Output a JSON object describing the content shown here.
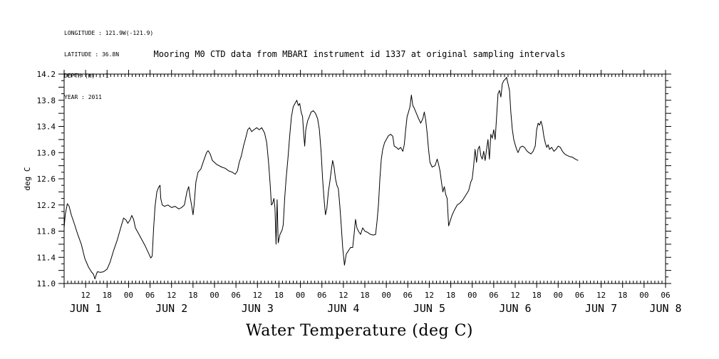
{
  "meta": {
    "longitude": "LONGITUDE : 121.9W(-121.9)",
    "latitude": "LATITUDE : 36.8N",
    "depth": "DEPTH (m) : 1",
    "year": "YEAR : 2011"
  },
  "chart_data": {
    "type": "line",
    "title": "Mooring M0 CTD data from MBARI instrument id 1337 at original sampling intervals",
    "xlabel": "Water Temperature (deg C)",
    "ylabel": "deg C",
    "ylim": [
      11.0,
      14.2
    ],
    "yticks": [
      "11.0",
      "11.4",
      "11.8",
      "12.2",
      "12.6",
      "13.0",
      "13.4",
      "13.8",
      "14.2"
    ],
    "xlim_hours_from_jun1_00": [
      6,
      174
    ],
    "hour_ticks": [
      {
        "h": 12,
        "label": "12"
      },
      {
        "h": 18,
        "label": "18"
      },
      {
        "h": 24,
        "label": "00"
      },
      {
        "h": 30,
        "label": "06"
      },
      {
        "h": 36,
        "label": "12"
      },
      {
        "h": 42,
        "label": "18"
      },
      {
        "h": 48,
        "label": "00"
      },
      {
        "h": 54,
        "label": "06"
      },
      {
        "h": 60,
        "label": "12"
      },
      {
        "h": 66,
        "label": "18"
      },
      {
        "h": 72,
        "label": "00"
      },
      {
        "h": 78,
        "label": "06"
      },
      {
        "h": 84,
        "label": "12"
      },
      {
        "h": 90,
        "label": "18"
      },
      {
        "h": 96,
        "label": "00"
      },
      {
        "h": 102,
        "label": "06"
      },
      {
        "h": 108,
        "label": "12"
      },
      {
        "h": 114,
        "label": "18"
      },
      {
        "h": 120,
        "label": "00"
      },
      {
        "h": 126,
        "label": "06"
      },
      {
        "h": 132,
        "label": "12"
      },
      {
        "h": 138,
        "label": "18"
      },
      {
        "h": 144,
        "label": "00"
      },
      {
        "h": 150,
        "label": "06"
      },
      {
        "h": 156,
        "label": "12"
      },
      {
        "h": 162,
        "label": "18"
      },
      {
        "h": 168,
        "label": "00"
      },
      {
        "h": 174,
        "label": "06"
      }
    ],
    "day_labels": [
      {
        "h": 12,
        "label": "JUN  1"
      },
      {
        "h": 36,
        "label": "JUN  2"
      },
      {
        "h": 60,
        "label": "JUN  3"
      },
      {
        "h": 84,
        "label": "JUN  4"
      },
      {
        "h": 108,
        "label": "JUN  5"
      },
      {
        "h": 132,
        "label": "JUN  6"
      },
      {
        "h": 156,
        "label": "JUN  7"
      },
      {
        "h": 174,
        "label": "JUN  8"
      }
    ],
    "series": [
      {
        "color": "#000000",
        "points": [
          [
            6.0,
            11.85
          ],
          [
            6.3,
            12.05
          ],
          [
            6.9,
            12.22
          ],
          [
            7.4,
            12.18
          ],
          [
            8.0,
            12.05
          ],
          [
            8.8,
            11.92
          ],
          [
            9.8,
            11.75
          ],
          [
            10.8,
            11.6
          ],
          [
            11.8,
            11.38
          ],
          [
            12.8,
            11.25
          ],
          [
            13.6,
            11.18
          ],
          [
            14.2,
            11.14
          ],
          [
            14.6,
            11.07
          ],
          [
            15.0,
            11.14
          ],
          [
            15.3,
            11.18
          ],
          [
            16.2,
            11.17
          ],
          [
            17.0,
            11.18
          ],
          [
            18.0,
            11.22
          ],
          [
            18.8,
            11.32
          ],
          [
            19.8,
            11.5
          ],
          [
            20.8,
            11.66
          ],
          [
            21.8,
            11.85
          ],
          [
            22.6,
            12.0
          ],
          [
            23.3,
            11.97
          ],
          [
            23.8,
            11.92
          ],
          [
            24.4,
            11.97
          ],
          [
            24.9,
            12.04
          ],
          [
            25.4,
            11.98
          ],
          [
            25.9,
            11.85
          ],
          [
            26.6,
            11.78
          ],
          [
            27.6,
            11.68
          ],
          [
            28.6,
            11.58
          ],
          [
            29.6,
            11.46
          ],
          [
            30.2,
            11.39
          ],
          [
            30.6,
            11.42
          ],
          [
            31.0,
            11.85
          ],
          [
            31.4,
            12.18
          ],
          [
            31.9,
            12.4
          ],
          [
            32.4,
            12.47
          ],
          [
            32.8,
            12.5
          ],
          [
            33.0,
            12.3
          ],
          [
            33.4,
            12.2
          ],
          [
            34.0,
            12.18
          ],
          [
            35.0,
            12.2
          ],
          [
            36.0,
            12.16
          ],
          [
            37.0,
            12.18
          ],
          [
            38.0,
            12.14
          ],
          [
            38.8,
            12.16
          ],
          [
            39.6,
            12.2
          ],
          [
            40.3,
            12.4
          ],
          [
            40.8,
            12.48
          ],
          [
            41.2,
            12.32
          ],
          [
            41.6,
            12.2
          ],
          [
            42.0,
            12.05
          ],
          [
            42.3,
            12.2
          ],
          [
            42.8,
            12.55
          ],
          [
            43.4,
            12.7
          ],
          [
            44.2,
            12.75
          ],
          [
            45.0,
            12.88
          ],
          [
            45.8,
            13.0
          ],
          [
            46.2,
            13.03
          ],
          [
            46.8,
            12.98
          ],
          [
            47.4,
            12.88
          ],
          [
            48.6,
            12.82
          ],
          [
            50.0,
            12.78
          ],
          [
            51.0,
            12.76
          ],
          [
            52.0,
            12.72
          ],
          [
            53.0,
            12.7
          ],
          [
            53.8,
            12.67
          ],
          [
            54.4,
            12.72
          ],
          [
            54.9,
            12.85
          ],
          [
            55.5,
            12.95
          ],
          [
            56.1,
            13.1
          ],
          [
            56.7,
            13.22
          ],
          [
            57.3,
            13.35
          ],
          [
            57.8,
            13.38
          ],
          [
            58.4,
            13.32
          ],
          [
            59.0,
            13.35
          ],
          [
            59.8,
            13.38
          ],
          [
            60.5,
            13.35
          ],
          [
            61.2,
            13.38
          ],
          [
            62.0,
            13.3
          ],
          [
            62.6,
            13.15
          ],
          [
            63.1,
            12.85
          ],
          [
            63.5,
            12.55
          ],
          [
            63.9,
            12.2
          ],
          [
            64.2,
            12.22
          ],
          [
            64.6,
            12.3
          ],
          [
            64.9,
            12.15
          ],
          [
            65.2,
            11.6
          ],
          [
            65.5,
            12.28
          ],
          [
            65.8,
            11.62
          ],
          [
            66.3,
            11.75
          ],
          [
            66.9,
            11.82
          ],
          [
            67.2,
            11.9
          ],
          [
            67.6,
            12.3
          ],
          [
            68.0,
            12.6
          ],
          [
            68.5,
            12.9
          ],
          [
            69.0,
            13.25
          ],
          [
            69.5,
            13.55
          ],
          [
            70.0,
            13.7
          ],
          [
            70.5,
            13.75
          ],
          [
            71.0,
            13.8
          ],
          [
            71.4,
            13.72
          ],
          [
            71.8,
            13.75
          ],
          [
            72.2,
            13.62
          ],
          [
            72.6,
            13.55
          ],
          [
            72.9,
            13.3
          ],
          [
            73.2,
            13.1
          ],
          [
            73.5,
            13.35
          ],
          [
            74.0,
            13.48
          ],
          [
            74.5,
            13.55
          ],
          [
            75.0,
            13.62
          ],
          [
            75.6,
            13.64
          ],
          [
            76.2,
            13.6
          ],
          [
            76.8,
            13.52
          ],
          [
            77.3,
            13.35
          ],
          [
            77.8,
            13.0
          ],
          [
            78.2,
            12.6
          ],
          [
            78.6,
            12.3
          ],
          [
            79.0,
            12.05
          ],
          [
            79.4,
            12.15
          ],
          [
            79.8,
            12.4
          ],
          [
            80.2,
            12.55
          ],
          [
            80.6,
            12.72
          ],
          [
            81.0,
            12.88
          ],
          [
            81.4,
            12.78
          ],
          [
            81.8,
            12.6
          ],
          [
            82.2,
            12.5
          ],
          [
            82.6,
            12.45
          ],
          [
            83.0,
            12.2
          ],
          [
            83.4,
            11.9
          ],
          [
            83.8,
            11.55
          ],
          [
            84.3,
            11.28
          ],
          [
            84.8,
            11.45
          ],
          [
            85.4,
            11.5
          ],
          [
            86.0,
            11.55
          ],
          [
            86.6,
            11.55
          ],
          [
            87.0,
            11.75
          ],
          [
            87.4,
            11.98
          ],
          [
            87.8,
            11.85
          ],
          [
            88.2,
            11.8
          ],
          [
            88.8,
            11.75
          ],
          [
            89.4,
            11.85
          ],
          [
            90.0,
            11.8
          ],
          [
            90.8,
            11.78
          ],
          [
            91.6,
            11.75
          ],
          [
            92.4,
            11.74
          ],
          [
            93.0,
            11.75
          ],
          [
            93.4,
            11.95
          ],
          [
            93.8,
            12.2
          ],
          [
            94.2,
            12.6
          ],
          [
            94.6,
            12.9
          ],
          [
            95.0,
            13.05
          ],
          [
            95.5,
            13.15
          ],
          [
            96.0,
            13.2
          ],
          [
            96.6,
            13.26
          ],
          [
            97.2,
            13.28
          ],
          [
            97.8,
            13.25
          ],
          [
            98.2,
            13.1
          ],
          [
            98.8,
            13.08
          ],
          [
            99.4,
            13.05
          ],
          [
            100.0,
            13.08
          ],
          [
            100.6,
            13.02
          ],
          [
            101.0,
            13.12
          ],
          [
            101.4,
            13.35
          ],
          [
            101.8,
            13.55
          ],
          [
            102.2,
            13.62
          ],
          [
            102.6,
            13.7
          ],
          [
            103.0,
            13.88
          ],
          [
            103.4,
            13.72
          ],
          [
            103.8,
            13.68
          ],
          [
            104.4,
            13.6
          ],
          [
            105.0,
            13.52
          ],
          [
            105.6,
            13.45
          ],
          [
            106.2,
            13.52
          ],
          [
            106.6,
            13.62
          ],
          [
            107.0,
            13.5
          ],
          [
            107.4,
            13.3
          ],
          [
            107.8,
            13.05
          ],
          [
            108.2,
            12.85
          ],
          [
            108.8,
            12.78
          ],
          [
            109.6,
            12.8
          ],
          [
            110.2,
            12.9
          ],
          [
            110.6,
            12.82
          ],
          [
            111.0,
            12.72
          ],
          [
            111.4,
            12.55
          ],
          [
            111.8,
            12.4
          ],
          [
            112.2,
            12.48
          ],
          [
            112.6,
            12.36
          ],
          [
            113.0,
            12.3
          ],
          [
            113.4,
            11.88
          ],
          [
            113.8,
            11.95
          ],
          [
            114.4,
            12.05
          ],
          [
            115.0,
            12.12
          ],
          [
            115.8,
            12.2
          ],
          [
            116.6,
            12.23
          ],
          [
            117.4,
            12.28
          ],
          [
            118.2,
            12.35
          ],
          [
            119.0,
            12.42
          ],
          [
            119.6,
            12.55
          ],
          [
            120.0,
            12.6
          ],
          [
            120.4,
            12.8
          ],
          [
            120.8,
            13.05
          ],
          [
            121.2,
            12.85
          ],
          [
            121.6,
            13.05
          ],
          [
            122.0,
            13.1
          ],
          [
            122.4,
            12.95
          ],
          [
            122.8,
            12.9
          ],
          [
            123.2,
            13.02
          ],
          [
            123.6,
            12.88
          ],
          [
            124.0,
            13.05
          ],
          [
            124.4,
            13.2
          ],
          [
            124.8,
            12.9
          ],
          [
            125.2,
            13.28
          ],
          [
            125.6,
            13.22
          ],
          [
            126.0,
            13.35
          ],
          [
            126.4,
            13.2
          ],
          [
            126.8,
            13.55
          ],
          [
            127.2,
            13.9
          ],
          [
            127.6,
            13.95
          ],
          [
            128.0,
            13.85
          ],
          [
            128.4,
            14.05
          ],
          [
            128.8,
            14.1
          ],
          [
            129.2,
            14.12
          ],
          [
            129.6,
            14.15
          ],
          [
            130.0,
            14.05
          ],
          [
            130.4,
            13.95
          ],
          [
            130.8,
            13.6
          ],
          [
            131.2,
            13.35
          ],
          [
            131.6,
            13.2
          ],
          [
            132.0,
            13.12
          ],
          [
            132.4,
            13.05
          ],
          [
            132.8,
            13.0
          ],
          [
            133.4,
            13.08
          ],
          [
            134.0,
            13.1
          ],
          [
            134.6,
            13.08
          ],
          [
            135.2,
            13.03
          ],
          [
            135.8,
            13.0
          ],
          [
            136.4,
            12.98
          ],
          [
            137.0,
            13.02
          ],
          [
            137.6,
            13.1
          ],
          [
            138.0,
            13.35
          ],
          [
            138.4,
            13.45
          ],
          [
            138.8,
            13.42
          ],
          [
            139.2,
            13.48
          ],
          [
            139.6,
            13.4
          ],
          [
            140.0,
            13.25
          ],
          [
            140.4,
            13.15
          ],
          [
            140.8,
            13.08
          ],
          [
            141.2,
            13.12
          ],
          [
            141.6,
            13.05
          ],
          [
            142.2,
            13.08
          ],
          [
            142.8,
            13.02
          ],
          [
            143.4,
            13.05
          ],
          [
            144.0,
            13.1
          ],
          [
            144.6,
            13.08
          ],
          [
            145.2,
            13.02
          ],
          [
            145.8,
            12.98
          ],
          [
            146.4,
            12.96
          ],
          [
            147.2,
            12.94
          ],
          [
            148.0,
            12.93
          ],
          [
            148.8,
            12.9
          ],
          [
            149.6,
            12.88
          ]
        ]
      }
    ]
  }
}
